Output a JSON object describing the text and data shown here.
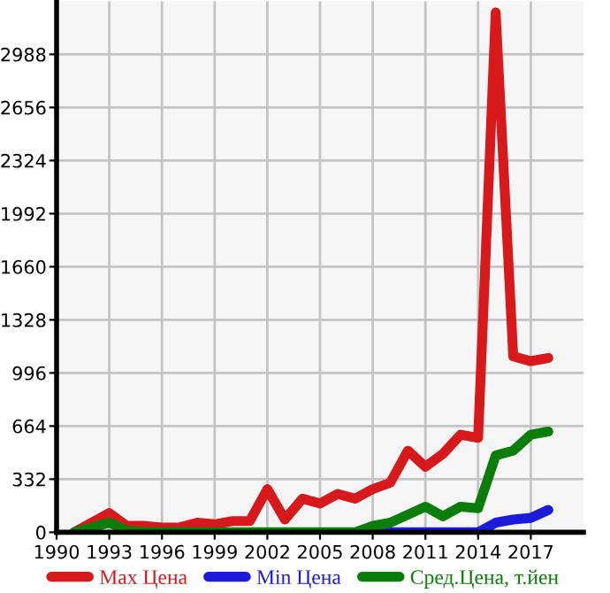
{
  "chart_data": {
    "type": "line",
    "x": [
      1991,
      1993,
      1994,
      1995,
      1996,
      1997,
      1998,
      1999,
      2000,
      2001,
      2002,
      2003,
      2004,
      2005,
      2006,
      2007,
      2008,
      2009,
      2010,
      2011,
      2012,
      2013,
      2014,
      2015,
      2016,
      2017,
      2018
    ],
    "series": [
      {
        "name": "Max Цена",
        "color": "#d8191c",
        "values": [
          0,
          120,
          40,
          40,
          30,
          30,
          60,
          50,
          70,
          70,
          270,
          80,
          210,
          180,
          240,
          210,
          270,
          310,
          510,
          410,
          490,
          610,
          590,
          3250,
          1100,
          1070,
          1090
        ]
      },
      {
        "name": "Min Цена",
        "color": "#1c1cd8",
        "values": [
          null,
          null,
          null,
          null,
          null,
          null,
          null,
          null,
          null,
          null,
          null,
          null,
          null,
          null,
          null,
          null,
          0,
          0,
          0,
          0,
          0,
          0,
          0,
          60,
          80,
          90,
          140
        ]
      },
      {
        "name": "Сред.Цена, т.йен",
        "color": "#0a7d0a",
        "values": [
          0,
          60,
          10,
          0,
          0,
          0,
          0,
          0,
          0,
          0,
          0,
          0,
          0,
          0,
          0,
          0,
          40,
          60,
          110,
          160,
          100,
          160,
          150,
          480,
          510,
          610,
          630
        ]
      }
    ],
    "xlim": [
      1990,
      2020
    ],
    "xticks": [
      1990,
      1993,
      1996,
      1999,
      2002,
      2005,
      2008,
      2011,
      2014,
      2017
    ],
    "ylim": [
      0,
      3320
    ],
    "yticks": [
      0,
      332,
      664,
      996,
      1328,
      1660,
      1992,
      2324,
      2656,
      2988
    ],
    "grid": true,
    "legend": "bottom",
    "marker": "none",
    "line_style": "solid"
  }
}
